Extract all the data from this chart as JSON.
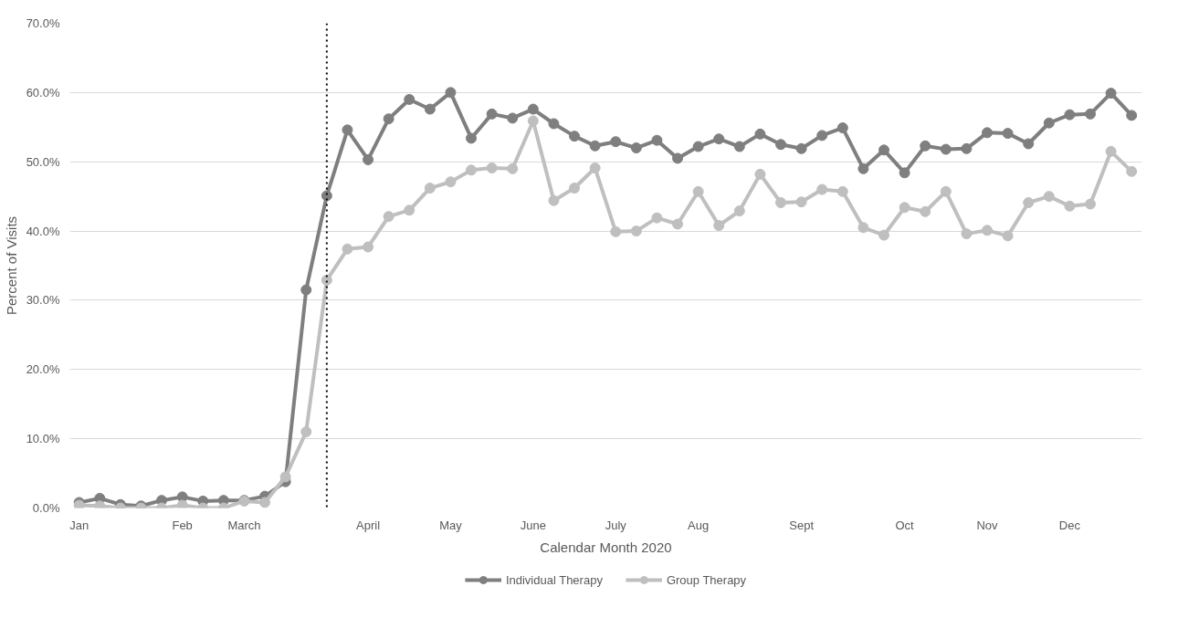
{
  "chart_data": {
    "type": "line",
    "xlabel": "Calendar Month 2020",
    "ylabel": "Percent of Visits",
    "categories": [
      "Jan",
      null,
      null,
      null,
      null,
      "Feb",
      null,
      null,
      "March",
      null,
      null,
      null,
      null,
      null,
      "April",
      null,
      null,
      null,
      "May",
      null,
      null,
      null,
      "June",
      null,
      null,
      null,
      "July",
      null,
      null,
      null,
      "Aug",
      null,
      null,
      null,
      null,
      "Sept",
      null,
      null,
      null,
      null,
      "Oct",
      null,
      null,
      null,
      "Nov",
      null,
      null,
      null,
      "Dec",
      null,
      null,
      null
    ],
    "ylim": [
      0,
      70
    ],
    "yticks": [
      {
        "value": 0,
        "label": "0.0%"
      },
      {
        "value": 10,
        "label": "10.0%"
      },
      {
        "value": 20,
        "label": "20.0%"
      },
      {
        "value": 30,
        "label": "30.0%"
      },
      {
        "value": 40,
        "label": "40.0%"
      },
      {
        "value": 50,
        "label": "50.0%"
      },
      {
        "value": 60,
        "label": "60.0%"
      },
      {
        "value": 70,
        "label": "70.0%"
      }
    ],
    "series": [
      {
        "name": "Individual Therapy",
        "color": "#7f7f80",
        "values": [
          0.8,
          1.4,
          0.5,
          0.3,
          1.1,
          1.6,
          1.0,
          1.1,
          1.1,
          1.7,
          3.8,
          31.5,
          45.1,
          54.6,
          50.3,
          56.2,
          59.0,
          57.6,
          60.0,
          53.4,
          56.9,
          56.3,
          57.6,
          55.5,
          53.7,
          52.3,
          52.9,
          52.0,
          53.1,
          50.5,
          52.2,
          53.3,
          52.2,
          54.0,
          52.5,
          51.9,
          53.8,
          54.9,
          49.0,
          51.7,
          48.4,
          52.3,
          51.8,
          51.9,
          54.2,
          54.1,
          52.6,
          55.6,
          56.8,
          56.9,
          59.9,
          56.7
        ]
      },
      {
        "name": "Group Therapy",
        "color": "#bfbfc0",
        "values": [
          0.4,
          0.3,
          0.0,
          0.0,
          0.0,
          0.4,
          0.0,
          0.0,
          1.0,
          0.8,
          4.5,
          11.0,
          32.9,
          37.4,
          37.7,
          42.1,
          43.0,
          46.2,
          47.1,
          48.8,
          49.1,
          49.0,
          55.9,
          44.4,
          46.2,
          49.1,
          39.9,
          40.0,
          41.9,
          41.0,
          45.7,
          40.8,
          42.9,
          48.2,
          44.1,
          44.2,
          46.0,
          45.7,
          40.5,
          39.4,
          43.4,
          42.8,
          45.7,
          39.6,
          40.1,
          39.3,
          44.1,
          45.0,
          43.6,
          43.9,
          51.5,
          48.6
        ]
      }
    ],
    "marker": "circle",
    "line_style": "solid",
    "grid": "y",
    "legend": "bottom"
  }
}
